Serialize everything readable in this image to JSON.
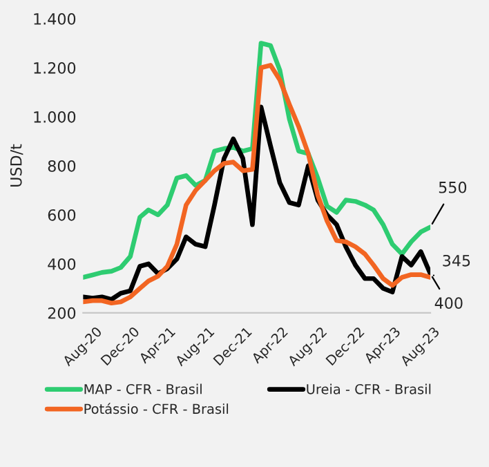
{
  "chart_data": {
    "type": "line",
    "ylabel": "USD/t",
    "x": [
      "2020-08",
      "2020-09",
      "2020-10",
      "2020-11",
      "2020-12",
      "2021-01",
      "2021-02",
      "2021-03",
      "2021-04",
      "2021-05",
      "2021-06",
      "2021-07",
      "2021-08",
      "2021-09",
      "2021-10",
      "2021-11",
      "2021-12",
      "2022-01",
      "2022-02",
      "2022-03",
      "2022-04",
      "2022-05",
      "2022-06",
      "2022-07",
      "2022-08",
      "2022-09",
      "2022-10",
      "2022-11",
      "2022-12",
      "2023-01",
      "2023-02",
      "2023-03",
      "2023-04",
      "2023-05",
      "2023-06",
      "2023-07",
      "2023-08",
      "2023-09"
    ],
    "series": [
      {
        "name": "MAP - CFR - Brasil",
        "color": "#2ecc71",
        "values": [
          345,
          355,
          365,
          370,
          385,
          430,
          590,
          620,
          600,
          640,
          750,
          760,
          720,
          740,
          860,
          870,
          875,
          860,
          870,
          1300,
          1290,
          1190,
          990,
          860,
          850,
          750,
          635,
          610,
          660,
          655,
          640,
          620,
          560,
          480,
          440,
          490,
          530,
          550
        ]
      },
      {
        "name": "Ureia - CFR - Brasil",
        "color": "#000000",
        "values": [
          265,
          260,
          265,
          255,
          280,
          290,
          390,
          400,
          360,
          380,
          420,
          510,
          480,
          470,
          640,
          830,
          910,
          830,
          560,
          1040,
          880,
          730,
          650,
          640,
          800,
          660,
          600,
          560,
          470,
          395,
          340,
          340,
          300,
          285,
          430,
          395,
          450,
          360
        ]
      },
      {
        "name": "Potássio - CFR - Brasil",
        "color": "#f26522",
        "values": [
          245,
          250,
          250,
          240,
          245,
          265,
          300,
          330,
          350,
          390,
          480,
          640,
          700,
          740,
          780,
          810,
          815,
          780,
          785,
          1200,
          1210,
          1150,
          1050,
          960,
          850,
          680,
          575,
          495,
          490,
          470,
          440,
          395,
          340,
          312,
          345,
          356,
          356,
          345
        ]
      }
    ],
    "xlim": [
      "2020-08",
      "2023-09"
    ],
    "xticks": [
      {
        "value": "2020-08",
        "label": "Aug-20"
      },
      {
        "value": "2020-12",
        "label": "Dec-20"
      },
      {
        "value": "2021-04",
        "label": "Apr-21"
      },
      {
        "value": "2021-08",
        "label": "Aug-21"
      },
      {
        "value": "2021-12",
        "label": "Dec-21"
      },
      {
        "value": "2022-04",
        "label": "Apr-22"
      },
      {
        "value": "2022-08",
        "label": "Aug-22"
      },
      {
        "value": "2022-12",
        "label": "Dec-22"
      },
      {
        "value": "2023-04",
        "label": "Apr-23"
      },
      {
        "value": "2023-08",
        "label": "Aug-23"
      }
    ],
    "ylim": [
      200,
      1400
    ],
    "yticks": [
      {
        "value": 200,
        "label": "200"
      },
      {
        "value": 400,
        "label": "400"
      },
      {
        "value": 600,
        "label": "600"
      },
      {
        "value": 800,
        "label": "800"
      },
      {
        "value": 1000,
        "label": "1.000"
      },
      {
        "value": 1200,
        "label": "1.200"
      },
      {
        "value": 1400,
        "label": "1.400"
      }
    ],
    "annotations": [
      {
        "text": "550",
        "x": "2023-09",
        "y": 550
      },
      {
        "text": "345",
        "x": "2023-09",
        "y": 345
      },
      {
        "text": "400",
        "x": "2023-09",
        "y": 360
      }
    ],
    "grid": false,
    "legend": "bottom",
    "marker": "none",
    "line_style": "solid"
  }
}
